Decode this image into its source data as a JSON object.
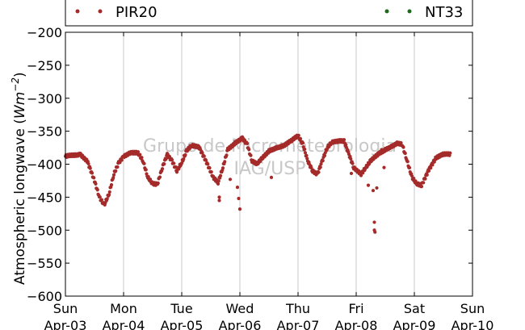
{
  "chart_data": {
    "type": "scatter",
    "ylabel_text": "Atmospheric longwave",
    "ylabel_unit_base": "Wm",
    "ylabel_unit_exp": "−2",
    "ylim": [
      -600,
      -200
    ],
    "yticks": [
      -200,
      -250,
      -300,
      -350,
      -400,
      -450,
      -500,
      -550,
      -600
    ],
    "ytick_labels": [
      "−200",
      "−250",
      "−300",
      "−350",
      "−400",
      "−450",
      "−500",
      "−550",
      "−600"
    ],
    "xlim_days": [
      0,
      7
    ],
    "xtick_labels": [
      {
        "day": "Sun",
        "date": "Apr-03"
      },
      {
        "day": "Mon",
        "date": "Apr-04"
      },
      {
        "day": "Tue",
        "date": "Apr-05"
      },
      {
        "day": "Wed",
        "date": "Apr-06"
      },
      {
        "day": "Thu",
        "date": "Apr-07"
      },
      {
        "day": "Fri",
        "date": "Apr-08"
      },
      {
        "day": "Sat",
        "date": "Apr-09"
      },
      {
        "day": "Sun",
        "date": "Apr-10"
      }
    ],
    "grid": "vertical",
    "legend_placement": "top",
    "watermark": [
      "Grupo de Micrometeorologia",
      "IAG/USP"
    ],
    "series": [
      {
        "name": "PIR20",
        "color": "#a52a2a",
        "profile": [
          [
            "Apr-03 00:00",
            -388
          ],
          [
            "Apr-03 06:00",
            -385
          ],
          [
            "Apr-03 09:00",
            -395
          ],
          [
            "Apr-03 12:00",
            -425
          ],
          [
            "Apr-03 14:00",
            -450
          ],
          [
            "Apr-03 16:00",
            -462
          ],
          [
            "Apr-03 18:00",
            -445
          ],
          [
            "Apr-03 20:00",
            -415
          ],
          [
            "Apr-03 22:00",
            -398
          ],
          [
            "Apr-04 00:00",
            -388
          ],
          [
            "Apr-04 03:00",
            -382
          ],
          [
            "Apr-04 06:00",
            -383
          ],
          [
            "Apr-04 08:00",
            -395
          ],
          [
            "Apr-04 10:00",
            -420
          ],
          [
            "Apr-04 12:00",
            -430
          ],
          [
            "Apr-04 14:00",
            -430
          ],
          [
            "Apr-04 16:00",
            -405
          ],
          [
            "Apr-04 18:00",
            -385
          ],
          [
            "Apr-04 20:00",
            -395
          ],
          [
            "Apr-04 22:00",
            -410
          ],
          [
            "Apr-05 00:00",
            -398
          ],
          [
            "Apr-05 02:00",
            -380
          ],
          [
            "Apr-05 04:00",
            -372
          ],
          [
            "Apr-05 07:00",
            -373
          ],
          [
            "Apr-05 10:00",
            -395
          ],
          [
            "Apr-05 13:00",
            -420
          ],
          [
            "Apr-05 15:00",
            -428
          ],
          [
            "Apr-05 17:00",
            -405
          ],
          [
            "Apr-05 19:00",
            -378
          ],
          [
            "Apr-05 22:00",
            -368
          ],
          [
            "Apr-06 01:00",
            -360
          ],
          [
            "Apr-06 03:00",
            -370
          ],
          [
            "Apr-06 05:00",
            -395
          ],
          [
            "Apr-06 07:00",
            -400
          ],
          [
            "Apr-06 09:00",
            -392
          ],
          [
            "Apr-06 12:00",
            -380
          ],
          [
            "Apr-06 15:00",
            -375
          ],
          [
            "Apr-06 18:00",
            -372
          ],
          [
            "Apr-06 21:00",
            -365
          ],
          [
            "Apr-07 00:00",
            -357
          ],
          [
            "Apr-07 02:00",
            -370
          ],
          [
            "Apr-07 04:00",
            -395
          ],
          [
            "Apr-07 06:00",
            -410
          ],
          [
            "Apr-07 08:00",
            -415
          ],
          [
            "Apr-07 10:00",
            -395
          ],
          [
            "Apr-07 12:00",
            -375
          ],
          [
            "Apr-07 14:00",
            -367
          ],
          [
            "Apr-07 17:00",
            -365
          ],
          [
            "Apr-07 19:00",
            -365
          ],
          [
            "Apr-07 21:00",
            -385
          ],
          [
            "Apr-07 23:00",
            -405
          ],
          [
            "Apr-08 02:00",
            -415
          ],
          [
            "Apr-08 04:00",
            -405
          ],
          [
            "Apr-08 06:00",
            -395
          ],
          [
            "Apr-08 09:00",
            -385
          ],
          [
            "Apr-08 12:00",
            -378
          ],
          [
            "Apr-08 15:00",
            -372
          ],
          [
            "Apr-08 17:00",
            -368
          ],
          [
            "Apr-08 19:00",
            -370
          ],
          [
            "Apr-08 21:00",
            -395
          ],
          [
            "Apr-08 23:00",
            -420
          ],
          [
            "Apr-09 01:00",
            -430
          ],
          [
            "Apr-09 03:00",
            -432
          ],
          [
            "Apr-09 06:00",
            -408
          ],
          [
            "Apr-09 09:00",
            -390
          ],
          [
            "Apr-09 12:00",
            -385
          ],
          [
            "Apr-09 15:00",
            -385
          ]
        ],
        "spikes": [
          [
            "Apr-05 15:30",
            -450
          ],
          [
            "Apr-05 15:30",
            -455
          ],
          [
            "Apr-05 20:00",
            -423
          ],
          [
            "Apr-05 23:00",
            -435
          ],
          [
            "Apr-05 23:30",
            -452
          ],
          [
            "Apr-06 00:00",
            -468
          ],
          [
            "Apr-06 13:00",
            -420
          ],
          [
            "Apr-07 22:00",
            -414
          ],
          [
            "Apr-08 05:00",
            -432
          ],
          [
            "Apr-08 07:00",
            -440
          ],
          [
            "Apr-08 07:30",
            -488
          ],
          [
            "Apr-08 07:30",
            -500
          ],
          [
            "Apr-08 07:45",
            -503
          ],
          [
            "Apr-08 08:30",
            -436
          ],
          [
            "Apr-08 10:30",
            -378
          ],
          [
            "Apr-08 11:30",
            -405
          ],
          [
            "Apr-09 06:30",
            -405
          ]
        ]
      },
      {
        "name": "NT33",
        "color": "#1b6a1b",
        "profile": [],
        "spikes": []
      }
    ]
  }
}
